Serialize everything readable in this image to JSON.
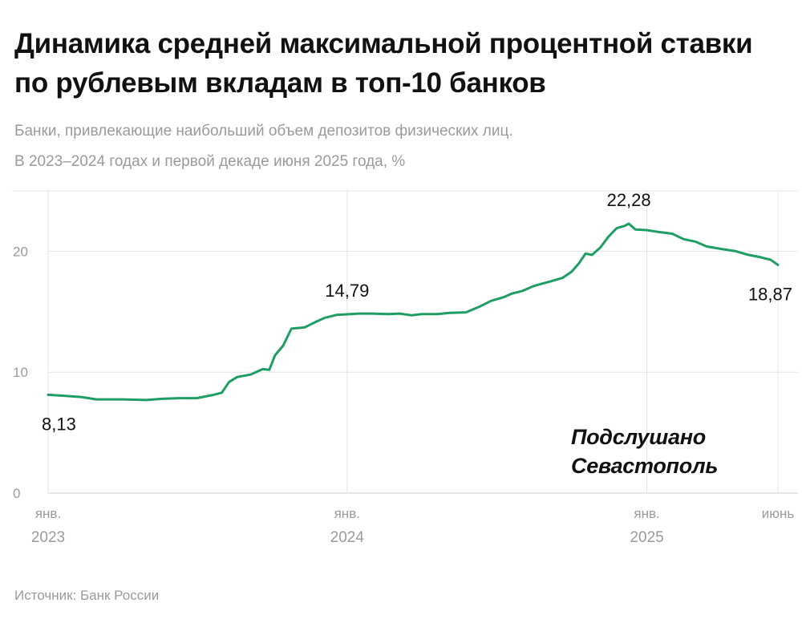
{
  "title": "Динамика средней максимальной процентной ставки по рублевым вкладам в топ-10 банков",
  "subtitle_line1": "Банки, привлекающие наибольший объем депозитов физических лиц.",
  "subtitle_line2": "В 2023–2024 годах и первой декаде июня 2025 года, %",
  "source": "Источник: Банк России",
  "watermark_line1": "Подслушано",
  "watermark_line2": "Севастополь",
  "colors": {
    "line": "#1f9e63",
    "grid": "#e4e4e4",
    "axis": "#cfcfcf",
    "muted": "#9a9a9a",
    "text": "#111111"
  },
  "chart_data": {
    "type": "line",
    "title": "Динамика средней максимальной процентной ставки по рублевым вкладам в топ-10 банков",
    "ylim": [
      0,
      25
    ],
    "y_ticks": [
      {
        "value": 0,
        "label": "0"
      },
      {
        "value": 10,
        "label": "10"
      },
      {
        "value": 20,
        "label": "20"
      }
    ],
    "x_ticks": [
      {
        "date": "2023-01-01",
        "line1": "янв.",
        "line2": "2023"
      },
      {
        "date": "2024-01-01",
        "line1": "янв.",
        "line2": "2024"
      },
      {
        "date": "2025-01-01",
        "line1": "янв.",
        "line2": "2025"
      },
      {
        "date": "2025-06-10",
        "line1": "июнь",
        "line2": ""
      }
    ],
    "grid": true,
    "annotations": [
      {
        "date": "2023-01-01",
        "value": 8.13,
        "label": "8,13",
        "position": "below"
      },
      {
        "date": "2024-01-01",
        "value": 14.79,
        "label": "14,79",
        "position": "above"
      },
      {
        "date": "2024-12-10",
        "value": 22.28,
        "label": "22,28",
        "position": "above"
      },
      {
        "date": "2025-06-10",
        "value": 18.87,
        "label": "18,87",
        "position": "below"
      }
    ],
    "series": [
      {
        "points": [
          [
            "2023-01-01",
            8.13
          ],
          [
            "2023-01-20",
            8.05
          ],
          [
            "2023-02-10",
            7.95
          ],
          [
            "2023-03-01",
            7.75
          ],
          [
            "2023-04-01",
            7.75
          ],
          [
            "2023-05-01",
            7.7
          ],
          [
            "2023-05-20",
            7.8
          ],
          [
            "2023-06-10",
            7.85
          ],
          [
            "2023-07-01",
            7.85
          ],
          [
            "2023-07-20",
            8.1
          ],
          [
            "2023-08-01",
            8.3
          ],
          [
            "2023-08-10",
            9.2
          ],
          [
            "2023-08-20",
            9.6
          ],
          [
            "2023-09-05",
            9.8
          ],
          [
            "2023-09-20",
            10.25
          ],
          [
            "2023-09-28",
            10.2
          ],
          [
            "2023-10-05",
            11.4
          ],
          [
            "2023-10-15",
            12.2
          ],
          [
            "2023-10-25",
            13.6
          ],
          [
            "2023-11-10",
            13.7
          ],
          [
            "2023-11-25",
            14.2
          ],
          [
            "2023-12-05",
            14.5
          ],
          [
            "2023-12-20",
            14.75
          ],
          [
            "2024-01-01",
            14.79
          ],
          [
            "2024-01-15",
            14.85
          ],
          [
            "2024-02-01",
            14.85
          ],
          [
            "2024-02-20",
            14.8
          ],
          [
            "2024-03-05",
            14.85
          ],
          [
            "2024-03-20",
            14.7
          ],
          [
            "2024-04-01",
            14.8
          ],
          [
            "2024-04-20",
            14.8
          ],
          [
            "2024-05-05",
            14.9
          ],
          [
            "2024-05-25",
            14.95
          ],
          [
            "2024-06-10",
            15.4
          ],
          [
            "2024-06-25",
            15.9
          ],
          [
            "2024-07-10",
            16.2
          ],
          [
            "2024-07-20",
            16.5
          ],
          [
            "2024-08-01",
            16.7
          ],
          [
            "2024-08-15",
            17.1
          ],
          [
            "2024-08-25",
            17.3
          ],
          [
            "2024-09-05",
            17.5
          ],
          [
            "2024-09-20",
            17.8
          ],
          [
            "2024-10-01",
            18.3
          ],
          [
            "2024-10-10",
            19.0
          ],
          [
            "2024-10-18",
            19.8
          ],
          [
            "2024-10-26",
            19.7
          ],
          [
            "2024-11-05",
            20.3
          ],
          [
            "2024-11-15",
            21.2
          ],
          [
            "2024-11-25",
            21.9
          ],
          [
            "2024-12-05",
            22.1
          ],
          [
            "2024-12-10",
            22.28
          ],
          [
            "2024-12-18",
            21.8
          ],
          [
            "2025-01-01",
            21.75
          ],
          [
            "2025-01-15",
            21.6
          ],
          [
            "2025-02-01",
            21.45
          ],
          [
            "2025-02-15",
            21.0
          ],
          [
            "2025-03-01",
            20.8
          ],
          [
            "2025-03-15",
            20.4
          ],
          [
            "2025-04-01",
            20.2
          ],
          [
            "2025-04-20",
            20.0
          ],
          [
            "2025-05-05",
            19.7
          ],
          [
            "2025-05-20",
            19.5
          ],
          [
            "2025-06-01",
            19.3
          ],
          [
            "2025-06-10",
            18.87
          ]
        ]
      }
    ]
  }
}
